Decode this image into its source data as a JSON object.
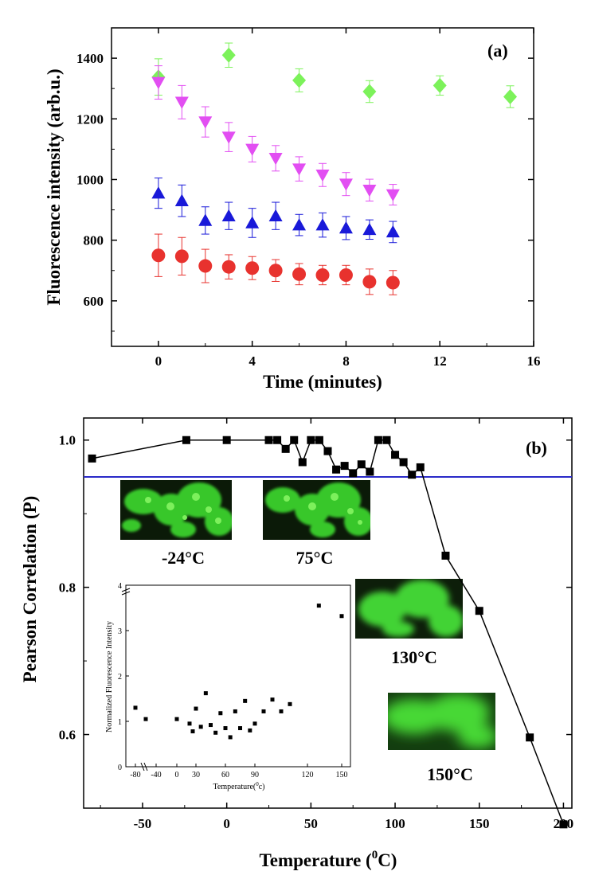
{
  "chart_data": [
    {
      "type": "scatter",
      "panel_label": "(a)",
      "xlabel": "Time (minutes)",
      "ylabel": "Fluorescence intensity (arb.u.)",
      "xlim": [
        -2,
        16
      ],
      "ylim": [
        450,
        1500
      ],
      "xticks": [
        0,
        4,
        8,
        12,
        16
      ],
      "yticks": [
        600,
        800,
        1000,
        1200,
        1400
      ],
      "grid": false,
      "series": [
        {
          "marker": "diamond",
          "color": "#7cf25a",
          "x": [
            0,
            3,
            6,
            9,
            12,
            15
          ],
          "y": [
            1338,
            1410,
            1327,
            1290,
            1310,
            1273
          ],
          "err": [
            60,
            40,
            38,
            36,
            32,
            36
          ]
        },
        {
          "marker": "triangle-down",
          "color": "#e24ef2",
          "x": [
            0,
            1,
            2,
            3,
            4,
            5,
            6,
            7,
            8,
            9,
            10
          ],
          "y": [
            1320,
            1255,
            1190,
            1140,
            1100,
            1070,
            1035,
            1015,
            985,
            965,
            950
          ],
          "err": [
            55,
            55,
            50,
            48,
            42,
            42,
            40,
            38,
            38,
            36,
            34
          ]
        },
        {
          "marker": "triangle-up",
          "color": "#1919d9",
          "x": [
            0,
            1,
            2,
            3,
            4,
            5,
            6,
            7,
            8,
            9,
            10
          ],
          "y": [
            955,
            930,
            865,
            880,
            857,
            880,
            850,
            850,
            840,
            835,
            827
          ],
          "err": [
            50,
            52,
            45,
            45,
            48,
            45,
            35,
            40,
            38,
            32,
            35
          ]
        },
        {
          "marker": "circle",
          "color": "#e8322e",
          "x": [
            0,
            1,
            2,
            3,
            4,
            5,
            6,
            7,
            8,
            9,
            10
          ],
          "y": [
            750,
            747,
            715,
            712,
            708,
            700,
            688,
            685,
            685,
            663,
            660
          ],
          "err": [
            70,
            62,
            55,
            40,
            38,
            36,
            35,
            32,
            32,
            42,
            40
          ]
        }
      ]
    },
    {
      "type": "line",
      "panel_label": "(b)",
      "xlabel": "Temperature (",
      "xlabel_sup": "0",
      "xlabel_end": "C)",
      "ylabel": "Pearson Correlation (P)",
      "xlim": [
        -85,
        205
      ],
      "ylim": [
        0.5,
        1.03
      ],
      "xticks": [
        -50,
        0,
        50,
        100,
        150,
        200
      ],
      "yticks": [
        0.6,
        0.8,
        1.0
      ],
      "ytick_labels": [
        "0.6",
        "0.8",
        "1.0"
      ],
      "threshold_line": {
        "y": 0.95,
        "color": "#2a2ac8"
      },
      "series": [
        {
          "marker": "square",
          "color": "#000000",
          "x": [
            -80,
            -24,
            0,
            25,
            30,
            35,
            40,
            45,
            50,
            55,
            60,
            65,
            70,
            75,
            80,
            85,
            90,
            95,
            100,
            105,
            110,
            115,
            130,
            150,
            180,
            200
          ],
          "y": [
            0.975,
            1.0,
            1.0,
            1.0,
            1.0,
            0.988,
            1.0,
            0.97,
            1.0,
            1.0,
            0.985,
            0.96,
            0.965,
            0.955,
            0.967,
            0.957,
            1.0,
            1.0,
            0.98,
            0.97,
            0.953,
            0.963,
            0.843,
            0.768,
            0.596,
            0.478
          ]
        }
      ],
      "image_labels": [
        "-24°C",
        "75°C",
        "130°C",
        "150°C"
      ],
      "inset": {
        "type": "scatter",
        "xlabel": "Temperature(",
        "xlabel_sup": "0",
        "xlabel_end": "c)",
        "ylabel": "Normalized Fluorescence Intensity",
        "xtick_labels": [
          "-80",
          "-40",
          "0",
          "30",
          "60",
          "90",
          "120",
          "150"
        ],
        "ytick_labels": [
          "0",
          "1",
          "2",
          "3",
          "4"
        ],
        "points": [
          [
            "-80",
            1.3
          ],
          [
            "-60",
            1.05
          ],
          [
            "0",
            1.05
          ],
          [
            "20",
            0.95
          ],
          [
            "25",
            0.78
          ],
          [
            "30",
            1.28
          ],
          [
            "35",
            0.88
          ],
          [
            "40",
            1.62
          ],
          [
            "45",
            0.92
          ],
          [
            "50",
            0.75
          ],
          [
            "55",
            1.18
          ],
          [
            "60",
            0.85
          ],
          [
            "65",
            0.65
          ],
          [
            "70",
            1.22
          ],
          [
            "75",
            0.85
          ],
          [
            "80",
            1.45
          ],
          [
            "85",
            0.8
          ],
          [
            "90",
            0.95
          ],
          [
            "95",
            1.22
          ],
          [
            "100",
            1.48
          ],
          [
            "105",
            1.22
          ],
          [
            "110",
            1.38
          ],
          [
            "130",
            3.55
          ],
          [
            "150",
            3.32
          ]
        ]
      }
    }
  ]
}
